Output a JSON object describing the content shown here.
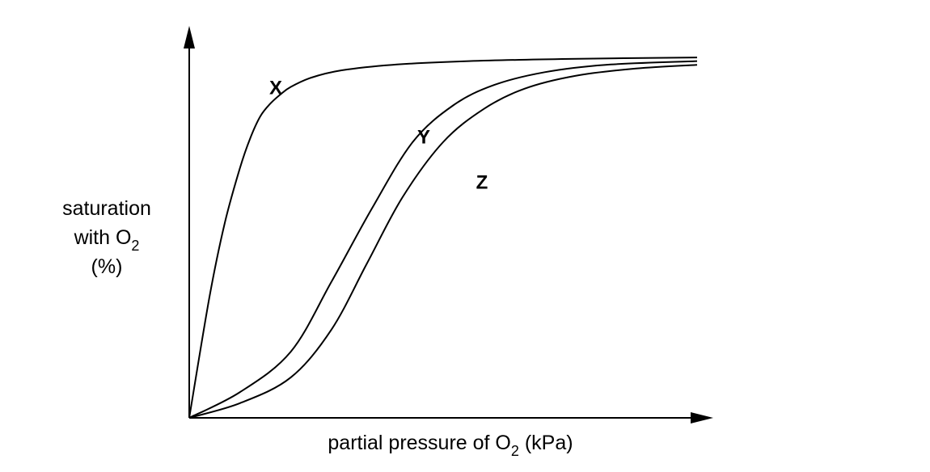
{
  "chart_data": {
    "type": "line",
    "title": "",
    "xlabel": {
      "main": "partial pressure of O",
      "sub": "2",
      "tail": " (kPa)"
    },
    "ylabel": {
      "line1": "saturation",
      "line2_main": "with O",
      "line2_sub": "2",
      "line3": "(%)"
    },
    "xlim": [
      0,
      100
    ],
    "ylim": [
      0,
      100
    ],
    "grid": false,
    "axis_ticks": "none",
    "series": [
      {
        "name": "X",
        "x": [
          0,
          4,
          7,
          10,
          12,
          14,
          16,
          18,
          20,
          24,
          30,
          40,
          55,
          75,
          100
        ],
        "y": [
          0,
          33,
          53,
          68,
          76,
          82,
          85.5,
          88,
          90,
          92.5,
          94.5,
          96,
          97,
          97.6,
          98
        ]
      },
      {
        "name": "Y",
        "x": [
          0,
          10,
          20,
          28,
          36,
          44,
          52,
          60,
          70,
          82,
          100
        ],
        "y": [
          0,
          7,
          18,
          37,
          57,
          75,
          85,
          90.5,
          94,
          96,
          97
        ]
      },
      {
        "name": "Z",
        "x": [
          0,
          10,
          20,
          28,
          35,
          42,
          50,
          58,
          66,
          76,
          88,
          100
        ],
        "y": [
          0,
          4,
          11,
          24,
          42,
          60,
          75,
          84,
          89.5,
          93,
          95,
          96
        ]
      }
    ]
  }
}
